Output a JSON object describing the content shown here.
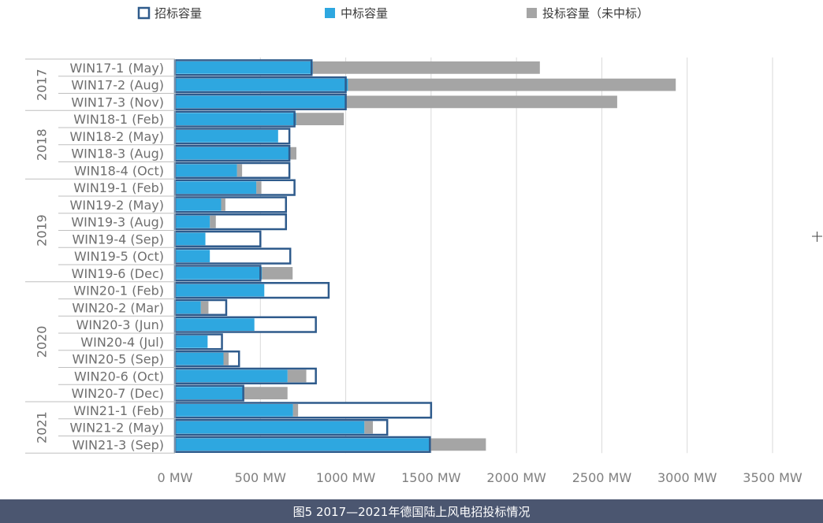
{
  "chart_data": {
    "type": "bar",
    "orientation": "horizontal",
    "title": "图5 2017—2021年德国陆上风电招投标情况",
    "legend": [
      {
        "name": "招标容量",
        "style": "outline",
        "color": "#2f5b8c"
      },
      {
        "name": "中标容量",
        "style": "fill",
        "color": "#2ea7e0"
      },
      {
        "name": "投标容量（未中标）",
        "style": "fill",
        "color": "#a5a5a5"
      }
    ],
    "xlim": [
      0,
      3500
    ],
    "xticks": [
      0,
      500,
      1000,
      1500,
      2000,
      2500,
      3000,
      3500
    ],
    "xtick_labels": [
      "0 MW",
      "500 MW",
      "1000 MW",
      "1500 MW",
      "2000 MW",
      "2500 MW",
      "3000 MW",
      "3500 MW"
    ],
    "groups": [
      {
        "label": "2017",
        "start": 0,
        "count": 3
      },
      {
        "label": "2018",
        "start": 3,
        "count": 4
      },
      {
        "label": "2019",
        "start": 7,
        "count": 6
      },
      {
        "label": "2020",
        "start": 13,
        "count": 7
      },
      {
        "label": "2021",
        "start": 20,
        "count": 3
      }
    ],
    "categories": [
      "WIN17-1 (May)",
      "WIN17-2 (Aug)",
      "WIN17-3 (Nov)",
      "WIN18-1 (Feb)",
      "WIN18-2 (May)",
      "WIN18-3 (Aug)",
      "WIN18-4 (Oct)",
      "WIN19-1 (Feb)",
      "WIN19-2 (May)",
      "WIN19-3 (Aug)",
      "WIN19-4 (Sep)",
      "WIN19-5 (Oct)",
      "WIN19-6 (Dec)",
      "WIN20-1 (Feb)",
      "WIN20-2 (Mar)",
      "WIN20-3 (Jun)",
      "WIN20-4 (Jul)",
      "WIN20-5 (Sep)",
      "WIN20-6 (Oct)",
      "WIN20-7 (Dec)",
      "WIN21-1 (Feb)",
      "WIN21-2 (May)",
      "WIN21-3 (Sep)"
    ],
    "series": [
      {
        "name": "招标容量",
        "values": [
          800,
          1000,
          1000,
          700,
          670,
          670,
          670,
          700,
          650,
          650,
          500,
          675,
          500,
          900,
          300,
          825,
          275,
          375,
          825,
          400,
          1500,
          1243,
          1493
        ]
      },
      {
        "name": "中标容量",
        "values": [
          807,
          1013,
          1000,
          709,
          604,
          666,
          363,
          476,
          270,
          204,
          178,
          204,
          509,
          523,
          151,
          465,
          191,
          284,
          659,
          399,
          691,
          1109,
          1496
        ]
      },
      {
        "name": "投标容量（未中标）",
        "values": [
          1330,
          1920,
          1590,
          280,
          0,
          45,
          30,
          30,
          25,
          35,
          0,
          0,
          180,
          0,
          45,
          0,
          0,
          30,
          110,
          260,
          30,
          50,
          325
        ]
      }
    ]
  }
}
